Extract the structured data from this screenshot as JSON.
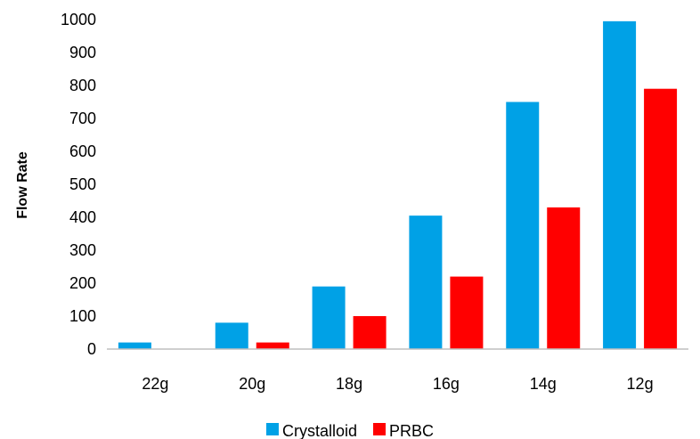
{
  "chart_data": {
    "type": "bar",
    "title": "",
    "xlabel": "",
    "ylabel": "Flow Rate",
    "categories": [
      "22g",
      "20g",
      "18g",
      "16g",
      "14g",
      "12g"
    ],
    "series": [
      {
        "name": "Crystalloid",
        "color": "#00A1E6",
        "values": [
          20,
          80,
          190,
          405,
          750,
          995
        ]
      },
      {
        "name": "PRBC",
        "color": "#FF0000",
        "values": [
          0,
          20,
          100,
          220,
          430,
          790
        ]
      }
    ],
    "ylim": [
      0,
      1000
    ],
    "yticks": [
      0,
      100,
      200,
      300,
      400,
      500,
      600,
      700,
      800,
      900,
      1000
    ],
    "grid": false,
    "legend_position": "bottom"
  }
}
